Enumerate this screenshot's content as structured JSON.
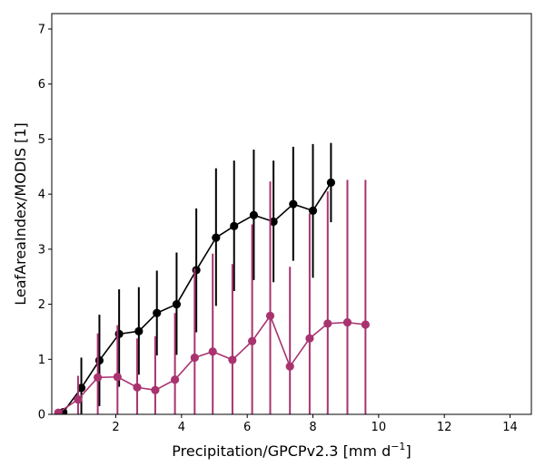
{
  "chart_data": {
    "type": "line",
    "xlabel": "Precipitation/GPCPv2.3 [mm d",
    "xlabel_sup": "−1",
    "xlabel_end": "]",
    "ylabel": "LeafAreaIndex/MODIS [1]",
    "xlim": [
      0.05,
      14.65
    ],
    "ylim": [
      0,
      7.28
    ],
    "xticks": [
      2,
      4,
      6,
      8,
      10,
      12,
      14
    ],
    "yticks": [
      0,
      1,
      2,
      3,
      4,
      5,
      6,
      7
    ],
    "grid": false,
    "series": [
      {
        "color": "#000000",
        "x": [
          0.4,
          0.95,
          1.5,
          2.1,
          2.7,
          3.25,
          3.85,
          4.45,
          5.05,
          5.6,
          6.2,
          6.8,
          7.4,
          8.0,
          8.55
        ],
        "y": [
          0.04,
          0.48,
          0.98,
          1.46,
          1.51,
          1.84,
          2.0,
          2.62,
          3.21,
          3.42,
          3.62,
          3.5,
          3.82,
          3.7,
          4.21
        ],
        "err_low": [
          0.0,
          0.0,
          0.15,
          0.5,
          0.72,
          1.07,
          1.08,
          1.49,
          1.97,
          2.24,
          2.44,
          2.4,
          2.79,
          2.48,
          3.49
        ],
        "err_high": [
          0.1,
          1.03,
          1.81,
          2.27,
          2.31,
          2.61,
          2.94,
          3.74,
          4.47,
          4.61,
          4.81,
          4.61,
          4.86,
          4.91,
          4.93
        ]
      },
      {
        "color": "#a8336f",
        "x": [
          0.25,
          0.85,
          1.45,
          2.05,
          2.65,
          3.2,
          3.8,
          4.4,
          4.95,
          5.55,
          6.15,
          6.7,
          7.3,
          7.9,
          8.45,
          9.05,
          9.6
        ],
        "y": [
          0.03,
          0.27,
          0.67,
          0.68,
          0.49,
          0.44,
          0.63,
          1.03,
          1.14,
          0.99,
          1.33,
          1.79,
          0.87,
          1.38,
          1.65,
          1.67,
          1.63
        ],
        "err_low": [
          0.0,
          0.0,
          0.0,
          0.0,
          0.0,
          0.0,
          0.0,
          0.0,
          0.0,
          0.0,
          0.0,
          0.0,
          0.0,
          0.0,
          0.0,
          0.0,
          0.0
        ],
        "err_high": [
          0.07,
          0.7,
          1.47,
          1.62,
          1.38,
          1.42,
          1.84,
          2.65,
          2.92,
          2.73,
          3.45,
          4.23,
          2.68,
          3.65,
          4.05,
          4.26,
          4.26
        ]
      }
    ]
  }
}
